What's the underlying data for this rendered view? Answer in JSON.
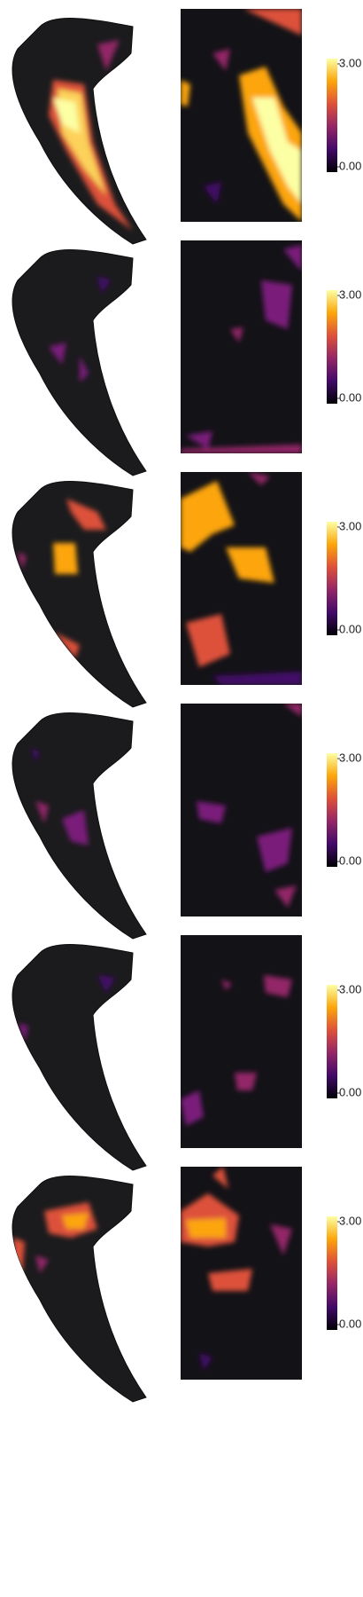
{
  "chart_data": [
    {
      "type": "heatmap",
      "colormap": "inferno",
      "zlim": [
        0,
        3
      ],
      "zticks": [
        {
          "value": 0,
          "label": "0.00"
        },
        {
          "value": 3,
          "label": "3.00"
        }
      ]
    },
    {
      "type": "heatmap",
      "colormap": "inferno",
      "zlim": [
        0,
        3
      ],
      "zticks": [
        {
          "value": 0,
          "label": "0.00"
        },
        {
          "value": 3,
          "label": "3.00"
        }
      ]
    },
    {
      "type": "heatmap",
      "colormap": "inferno",
      "zlim": [
        0,
        3
      ],
      "zticks": [
        {
          "value": 0,
          "label": "0.00"
        },
        {
          "value": 3,
          "label": "3.00"
        }
      ]
    },
    {
      "type": "heatmap",
      "colormap": "inferno",
      "zlim": [
        0,
        3
      ],
      "zticks": [
        {
          "value": 0,
          "label": "0.00"
        },
        {
          "value": 3,
          "label": "3.00"
        }
      ]
    },
    {
      "type": "heatmap",
      "colormap": "inferno",
      "zlim": [
        0,
        3
      ],
      "zticks": [
        {
          "value": 0,
          "label": "0.00"
        },
        {
          "value": 3,
          "label": "3.00"
        }
      ]
    },
    {
      "type": "heatmap",
      "colormap": "inferno",
      "zlim": [
        0,
        3
      ],
      "zticks": [
        {
          "value": 0,
          "label": "0.00"
        },
        {
          "value": 3,
          "label": "3.00"
        }
      ]
    }
  ]
}
